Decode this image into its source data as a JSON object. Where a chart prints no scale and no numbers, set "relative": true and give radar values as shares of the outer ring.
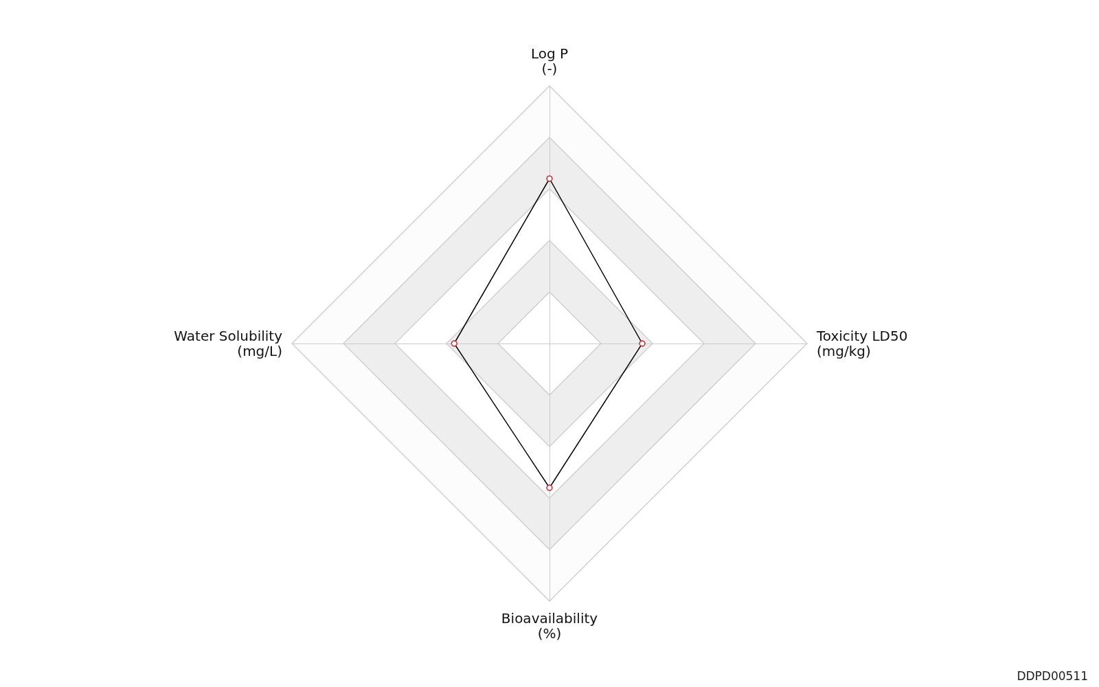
{
  "chart_data": {
    "type": "radar",
    "relative": true,
    "categories": [
      "Log P\n(-)",
      "Toxicity LD50\n(mg/kg)",
      "Bioavailability\n(%)",
      "Water Solubility\n(mg/L)"
    ],
    "series": [
      {
        "color": "#000000",
        "values": [
          0.64,
          0.36,
          0.56,
          0.37
        ]
      }
    ],
    "marker": "circle",
    "annotations": [
      "DDPD00511"
    ]
  }
}
